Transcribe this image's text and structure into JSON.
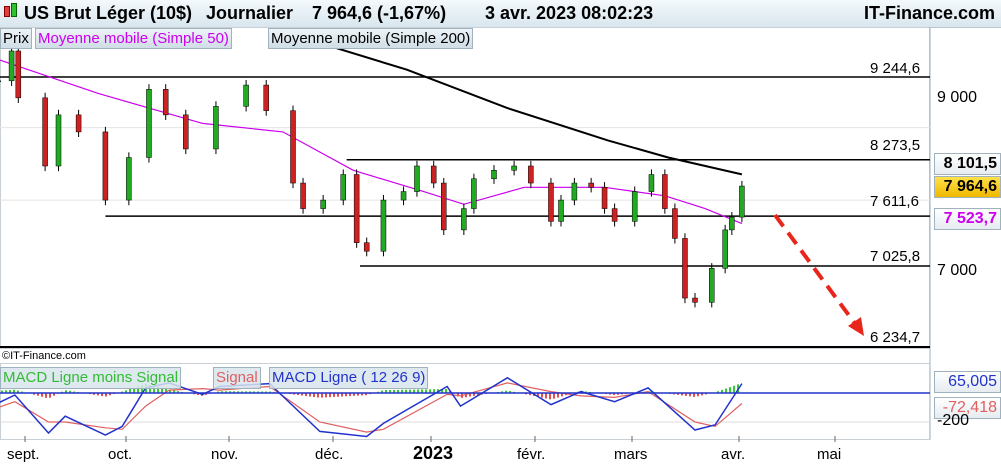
{
  "header": {
    "title": "US Brut Léger (10$)",
    "period": "Journalier",
    "price": "7 964,6 (-1,67%)",
    "datetime": "3 avr. 2023 08:02:23",
    "brand": "IT-Finance.com"
  },
  "legend": {
    "price": "Prix",
    "sma50": "Moyenne mobile (Simple 50)",
    "sma200": "Moyenne mobile (Simple 200)"
  },
  "copyright": "©IT-Finance.com",
  "macd_legend": {
    "hist": "MACD Ligne moins Signal",
    "signal": "Signal",
    "line": "MACD Ligne ( 12 26 9)"
  },
  "colors": {
    "sma50": "#cc00ee",
    "sma200": "#000000",
    "up": "#22aa22",
    "down": "#cc2222",
    "macd": "#2233cc",
    "signal": "#e06060",
    "hist_up": "#33cc33",
    "hist_down": "#e05050",
    "arrow": "#e8261c",
    "last_tag": "#f5c400"
  },
  "chart_data": [
    {
      "type": "candlestick",
      "yticks": [
        "9 000",
        "7 000"
      ],
      "ytick_values": [
        9000,
        7000
      ],
      "xticks": [
        "sept.",
        "oct.",
        "nov.",
        "déc.",
        "2023",
        "févr.",
        "mars",
        "avr.",
        "mai"
      ],
      "levels": [
        {
          "value": 9244.6,
          "label": "9 244,6",
          "from": "2022-08-24"
        },
        {
          "value": 8273.5,
          "label": "8 273,5",
          "from": "2022-12-06"
        },
        {
          "value": 7611.6,
          "label": "7 611,6",
          "from": "2022-09-25"
        },
        {
          "value": 7025.8,
          "label": "7 025,8",
          "from": "2022-12-10"
        },
        {
          "value": 6234.7,
          "label": "6 234,7",
          "from": null
        }
      ],
      "tags": {
        "sma200": "8 101,5",
        "last": "7 964,6",
        "sma50": "7 523,7"
      },
      "closes": [
        [
          "2022-08-24",
          9200
        ],
        [
          "2022-08-28",
          9550
        ],
        [
          "2022-08-30",
          9000
        ],
        [
          "2022-09-07",
          8200
        ],
        [
          "2022-09-11",
          8800
        ],
        [
          "2022-09-17",
          8600
        ],
        [
          "2022-09-25",
          7800
        ],
        [
          "2022-10-02",
          8300
        ],
        [
          "2022-10-08",
          9100
        ],
        [
          "2022-10-13",
          8800
        ],
        [
          "2022-10-19",
          8400
        ],
        [
          "2022-10-28",
          8900
        ],
        [
          "2022-11-06",
          9150
        ],
        [
          "2022-11-12",
          8850
        ],
        [
          "2022-11-20",
          8000
        ],
        [
          "2022-11-23",
          7700
        ],
        [
          "2022-11-29",
          7800
        ],
        [
          "2022-12-05",
          8100
        ],
        [
          "2022-12-09",
          7300
        ],
        [
          "2022-12-12",
          7200
        ],
        [
          "2022-12-17",
          7800
        ],
        [
          "2022-12-23",
          7900
        ],
        [
          "2022-12-27",
          8200
        ],
        [
          "2023-01-01",
          8000
        ],
        [
          "2023-01-04",
          7450
        ],
        [
          "2023-01-10",
          7700
        ],
        [
          "2023-01-13",
          8050
        ],
        [
          "2023-01-19",
          8150
        ],
        [
          "2023-01-25",
          8200
        ],
        [
          "2023-01-30",
          8000
        ],
        [
          "2023-02-05",
          7550
        ],
        [
          "2023-02-08",
          7800
        ],
        [
          "2023-02-12",
          8000
        ],
        [
          "2023-02-17",
          7950
        ],
        [
          "2023-02-21",
          7700
        ],
        [
          "2023-02-24",
          7550
        ],
        [
          "2023-03-02",
          7900
        ],
        [
          "2023-03-07",
          8100
        ],
        [
          "2023-03-11",
          7700
        ],
        [
          "2023-03-14",
          7350
        ],
        [
          "2023-03-17",
          6650
        ],
        [
          "2023-03-20",
          6600
        ],
        [
          "2023-03-25",
          7000
        ],
        [
          "2023-03-29",
          7450
        ],
        [
          "2023-03-31",
          7600
        ],
        [
          "2023-04-03",
          7964.6
        ]
      ],
      "sma50": [
        [
          "2022-08-24",
          9450
        ],
        [
          "2022-09-23",
          9050
        ],
        [
          "2022-10-24",
          8700
        ],
        [
          "2022-11-17",
          8600
        ],
        [
          "2022-12-08",
          8150
        ],
        [
          "2022-12-29",
          7900
        ],
        [
          "2023-01-10",
          7750
        ],
        [
          "2023-01-28",
          7950
        ],
        [
          "2023-02-21",
          7950
        ],
        [
          "2023-03-11",
          7850
        ],
        [
          "2023-03-23",
          7700
        ],
        [
          "2023-04-03",
          7523.7
        ]
      ],
      "sma200": [
        [
          "2022-11-15",
          9800
        ],
        [
          "2022-12-24",
          9330
        ],
        [
          "2023-01-23",
          8880
        ],
        [
          "2023-02-22",
          8500
        ],
        [
          "2023-03-12",
          8300
        ],
        [
          "2023-04-03",
          8101.5
        ]
      ]
    },
    {
      "type": "macd",
      "yticks": [
        "-200"
      ],
      "ytick_values": [
        -200
      ],
      "tags": {
        "macd": "65,005",
        "signal": "-72,418"
      },
      "macd": [
        [
          "2022-08-24",
          -69
        ],
        [
          "2022-08-29",
          -14
        ],
        [
          "2022-09-08",
          -276
        ],
        [
          "2022-09-13",
          -160
        ],
        [
          "2022-09-25",
          -290
        ],
        [
          "2022-09-30",
          -230
        ],
        [
          "2022-10-07",
          35
        ],
        [
          "2022-10-14",
          70
        ],
        [
          "2022-10-24",
          -10
        ],
        [
          "2022-10-29",
          45
        ],
        [
          "2022-11-13",
          65
        ],
        [
          "2022-11-28",
          -265
        ],
        [
          "2022-12-12",
          -300
        ],
        [
          "2022-12-17",
          -210
        ],
        [
          "2023-01-05",
          45
        ],
        [
          "2023-01-09",
          -90
        ],
        [
          "2023-01-23",
          105
        ],
        [
          "2023-02-05",
          -80
        ],
        [
          "2023-02-14",
          10
        ],
        [
          "2023-02-24",
          -60
        ],
        [
          "2023-03-06",
          35
        ],
        [
          "2023-03-20",
          -255
        ],
        [
          "2023-03-26",
          -220
        ],
        [
          "2023-04-03",
          65.005
        ]
      ],
      "signal": [
        [
          "2022-08-24",
          -100
        ],
        [
          "2022-08-29",
          -60
        ],
        [
          "2022-09-08",
          -200
        ],
        [
          "2022-09-13",
          -200
        ],
        [
          "2022-09-25",
          -240
        ],
        [
          "2022-09-30",
          -250
        ],
        [
          "2022-10-07",
          -90
        ],
        [
          "2022-10-14",
          20
        ],
        [
          "2022-10-24",
          30
        ],
        [
          "2022-10-29",
          20
        ],
        [
          "2022-11-13",
          45
        ],
        [
          "2022-11-28",
          -200
        ],
        [
          "2022-12-12",
          -270
        ],
        [
          "2022-12-17",
          -250
        ],
        [
          "2023-01-05",
          -10
        ],
        [
          "2023-01-09",
          -20
        ],
        [
          "2023-01-23",
          70
        ],
        [
          "2023-02-05",
          10
        ],
        [
          "2023-02-14",
          -20
        ],
        [
          "2023-02-24",
          -30
        ],
        [
          "2023-03-06",
          10
        ],
        [
          "2023-03-20",
          -200
        ],
        [
          "2023-03-26",
          -230
        ],
        [
          "2023-04-03",
          -72.418
        ]
      ]
    }
  ]
}
